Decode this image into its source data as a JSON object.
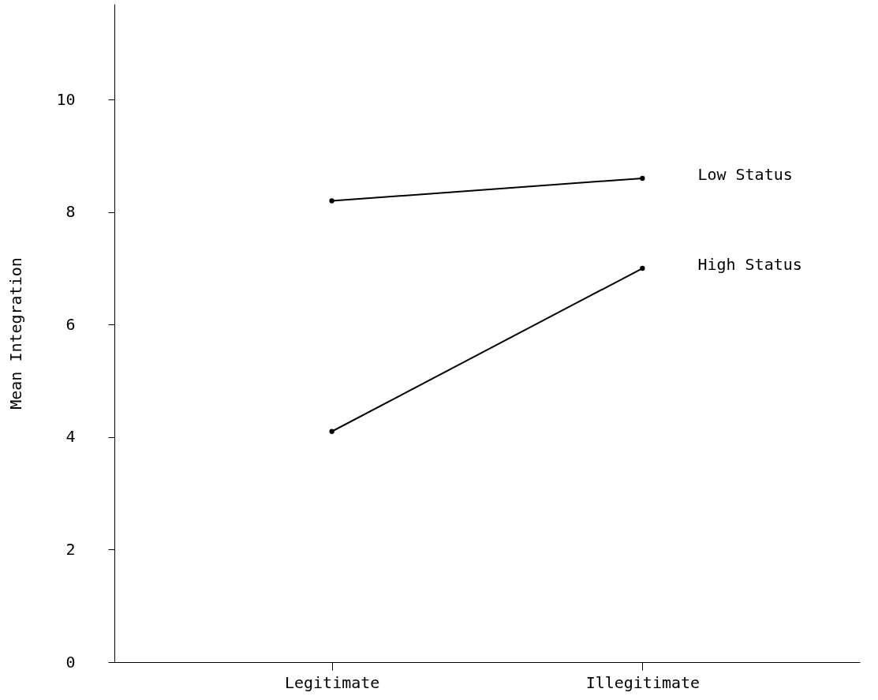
{
  "chart_data": {
    "type": "line",
    "ylabel": "Mean Integration",
    "categories": [
      "Legitimate",
      "Illegitimate"
    ],
    "series": [
      {
        "name": "Low Status",
        "color": "#000000",
        "values": [
          8.2,
          8.6
        ]
      },
      {
        "name": "High Status",
        "color": "#000000",
        "values": [
          4.1,
          7.0
        ]
      }
    ],
    "ylim": [
      0,
      11.7
    ],
    "yticks": [
      0,
      2,
      4,
      6,
      8,
      10
    ],
    "grid": false,
    "legend": false,
    "marker": "circle",
    "line_style": "solid"
  }
}
